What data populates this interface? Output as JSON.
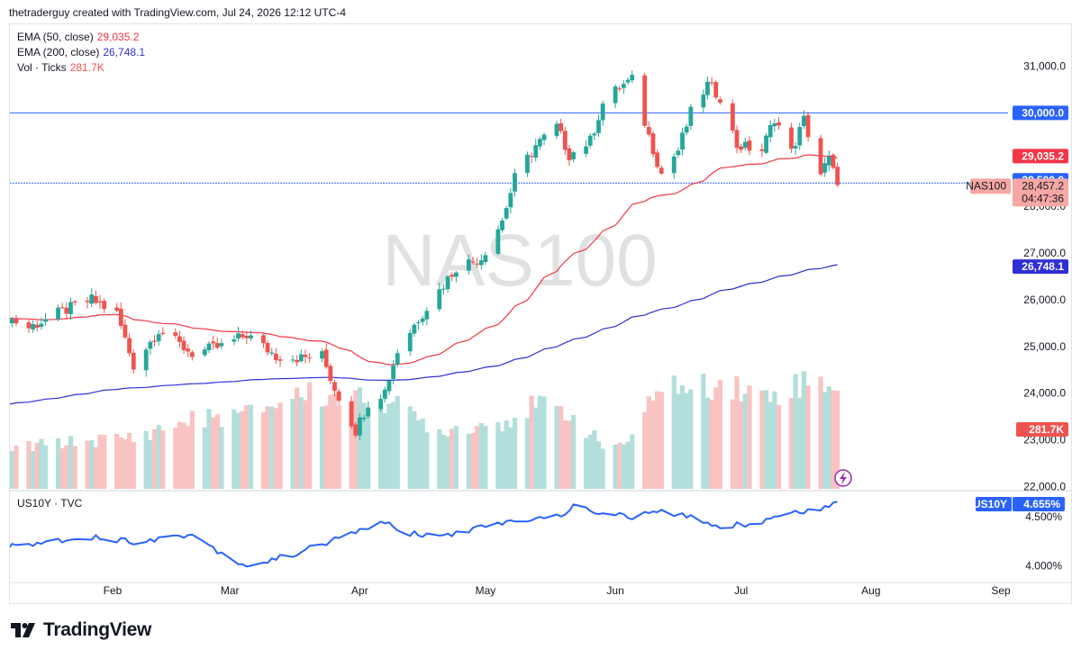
{
  "header": {
    "text": "thetraderguy created with TradingView.com, Jul 24, 2026 12:12 UTC-4"
  },
  "watermark": "NAS100",
  "colors": {
    "up": "#26a69a",
    "down": "#ef5350",
    "ema50": "#f23645",
    "ema200": "#2f2fd6",
    "hline": "#2962ff",
    "yield": "#2962ff",
    "volUp": "#b2dfdb",
    "volDown": "#f8c3c1"
  },
  "legend": {
    "ema50": {
      "label": "EMA (50, close)",
      "value": "29,035.2"
    },
    "ema200": {
      "label": "EMA (200, close)",
      "value": "26,748.1"
    },
    "vol": {
      "label": "Vol · Ticks",
      "value": "281.7K"
    }
  },
  "subpane": {
    "label": "US10Y · TVC"
  },
  "badges": {
    "hline_top": "30,000.0",
    "ema50": "29,035.2",
    "hline_mid": "28,500.0",
    "symbol": "NAS100",
    "price": "28,457.2",
    "countdown": "04:47:36",
    "ema200": "26,748.1",
    "vol": "281.7K",
    "us10y_symbol": "US10Y",
    "us10y_value": "4.655%"
  },
  "chart_data": [
    {
      "type": "candlestick",
      "symbol": "NAS100",
      "interval": "daily",
      "yticks": [
        "31,000.0",
        "28,000.0",
        "27,000.0",
        "26,000.0",
        "25,000.0",
        "24,000.0",
        "23,000.0",
        "22,000.0"
      ],
      "ytick_values": [
        31000,
        28000,
        27000,
        26000,
        25000,
        24000,
        23000,
        22000
      ],
      "ylim": [
        21950,
        31800
      ],
      "xlabels": [
        "Feb",
        "Mar",
        "Apr",
        "May",
        "Jun",
        "Jul",
        "Aug",
        "Sep"
      ],
      "xlabel_dates": [
        "2026-02-01",
        "2026-03-01",
        "2026-04-01",
        "2026-05-01",
        "2026-06-01",
        "2026-07-01",
        "2026-08-01",
        "2026-09-01"
      ],
      "horizontal_lines": [
        30000,
        28500
      ],
      "last_price": 28457.2,
      "ema50_last": 29035.2,
      "ema200_last": 26748.1,
      "close_anchors": [
        [
          "2026-01-05",
          25700
        ],
        [
          "2026-01-12",
          25400
        ],
        [
          "2026-01-20",
          25750
        ],
        [
          "2026-01-27",
          26000
        ],
        [
          "2026-02-02",
          25700
        ],
        [
          "2026-02-06",
          24600
        ],
        [
          "2026-02-12",
          25350
        ],
        [
          "2026-02-20",
          24850
        ],
        [
          "2026-02-27",
          25000
        ],
        [
          "2026-03-05",
          25250
        ],
        [
          "2026-03-12",
          24800
        ],
        [
          "2026-03-18",
          24750
        ],
        [
          "2026-03-23",
          24800
        ],
        [
          "2026-03-26",
          24100
        ],
        [
          "2026-03-31",
          23200
        ],
        [
          "2026-04-03",
          23800
        ],
        [
          "2026-04-07",
          24050
        ],
        [
          "2026-04-10",
          24900
        ],
        [
          "2026-04-15",
          25600
        ],
        [
          "2026-04-20",
          26200
        ],
        [
          "2026-04-24",
          26700
        ],
        [
          "2026-04-30",
          26900
        ],
        [
          "2026-05-05",
          27700
        ],
        [
          "2026-05-08",
          28600
        ],
        [
          "2026-05-13",
          29300
        ],
        [
          "2026-05-18",
          29700
        ],
        [
          "2026-05-21",
          29100
        ],
        [
          "2026-05-26",
          29400
        ],
        [
          "2026-05-29",
          30200
        ],
        [
          "2026-06-02",
          30550
        ],
        [
          "2026-06-05",
          30700
        ],
        [
          "2026-06-09",
          29500
        ],
        [
          "2026-06-12",
          28700
        ],
        [
          "2026-06-16",
          29200
        ],
        [
          "2026-06-19",
          30000
        ],
        [
          "2026-06-23",
          30600
        ],
        [
          "2026-06-26",
          30350
        ],
        [
          "2026-06-30",
          29300
        ],
        [
          "2026-07-06",
          29200
        ],
        [
          "2026-07-09",
          29900
        ],
        [
          "2026-07-13",
          29150
        ],
        [
          "2026-07-16",
          29850
        ],
        [
          "2026-07-20",
          28700
        ],
        [
          "2026-07-22",
          29000
        ],
        [
          "2026-07-24",
          28457.2
        ]
      ],
      "volume_k_anchors": [
        [
          "2026-01-05",
          110
        ],
        [
          "2026-01-20",
          130
        ],
        [
          "2026-02-06",
          145
        ],
        [
          "2026-02-20",
          195
        ],
        [
          "2026-03-05",
          210
        ],
        [
          "2026-03-18",
          270
        ],
        [
          "2026-03-31",
          250
        ],
        [
          "2026-04-07",
          250
        ],
        [
          "2026-04-20",
          165
        ],
        [
          "2026-05-05",
          190
        ],
        [
          "2026-05-13",
          235
        ],
        [
          "2026-05-21",
          215
        ],
        [
          "2026-05-29",
          120
        ],
        [
          "2026-06-05",
          135
        ],
        [
          "2026-06-12",
          310
        ],
        [
          "2026-06-19",
          270
        ],
        [
          "2026-06-26",
          305
        ],
        [
          "2026-07-06",
          260
        ],
        [
          "2026-07-16",
          300
        ],
        [
          "2026-07-22",
          305
        ],
        [
          "2026-07-24",
          281.7
        ]
      ]
    },
    {
      "type": "line",
      "symbol": "US10Y",
      "yticks": [
        "4.500%",
        "4.000%"
      ],
      "ytick_values": [
        4.5,
        4.0
      ],
      "ylim": [
        3.85,
        4.75
      ],
      "last_value": 4.655,
      "series_anchors": [
        [
          "2026-01-05",
          4.18
        ],
        [
          "2026-01-26",
          4.3
        ],
        [
          "2026-02-06",
          4.25
        ],
        [
          "2026-02-20",
          4.32
        ],
        [
          "2026-03-02",
          4.05
        ],
        [
          "2026-03-06",
          4.0
        ],
        [
          "2026-03-16",
          4.12
        ],
        [
          "2026-03-23",
          4.22
        ],
        [
          "2026-03-27",
          4.28
        ],
        [
          "2026-04-03",
          4.4
        ],
        [
          "2026-04-07",
          4.45
        ],
        [
          "2026-04-10",
          4.35
        ],
        [
          "2026-04-20",
          4.3
        ],
        [
          "2026-05-01",
          4.4
        ],
        [
          "2026-05-11",
          4.48
        ],
        [
          "2026-05-18",
          4.5
        ],
        [
          "2026-05-22",
          4.6
        ],
        [
          "2026-06-01",
          4.52
        ],
        [
          "2026-06-05",
          4.5
        ],
        [
          "2026-06-11",
          4.55
        ],
        [
          "2026-06-19",
          4.5
        ],
        [
          "2026-06-26",
          4.4
        ],
        [
          "2026-07-06",
          4.45
        ],
        [
          "2026-07-13",
          4.55
        ],
        [
          "2026-07-20",
          4.58
        ],
        [
          "2026-07-24",
          4.655
        ]
      ]
    }
  ]
}
